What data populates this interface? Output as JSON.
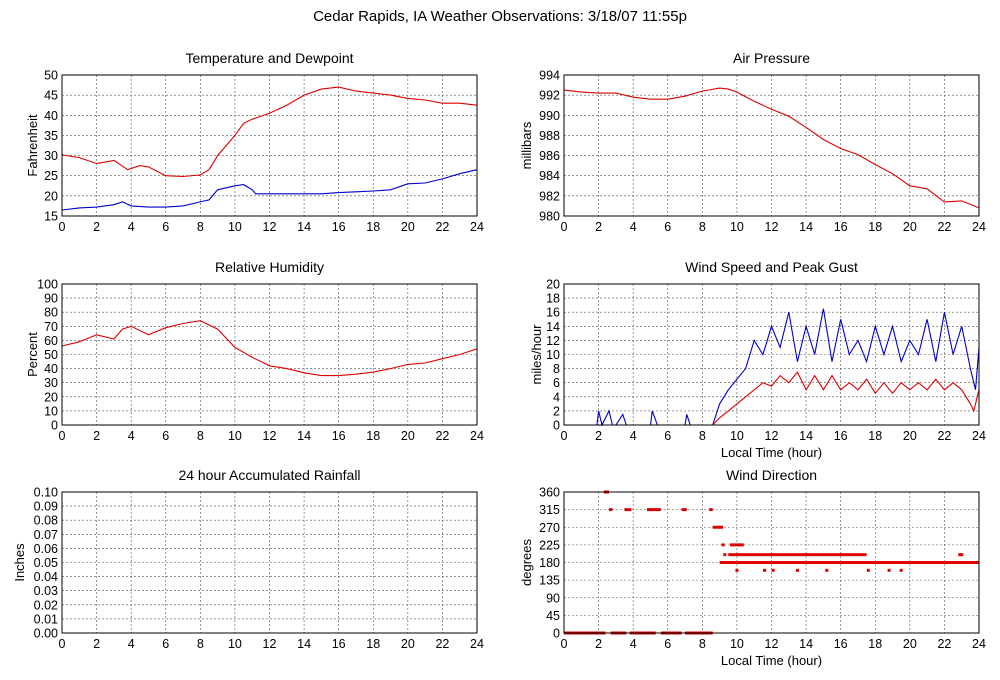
{
  "page_title": "Cedar Rapids, IA Weather Observations: 3/18/07 11:55p",
  "colors": {
    "red": "#dd0000",
    "blue": "#0000cc",
    "grid": "#555555"
  },
  "chart_data": [
    {
      "id": "temp",
      "type": "line",
      "title": "Temperature and Dewpoint",
      "xlabel": "",
      "ylabel": "Fahrenheit",
      "xlim": [
        0,
        24
      ],
      "ylim": [
        15,
        50
      ],
      "xticks": [
        0,
        2,
        4,
        6,
        8,
        10,
        12,
        14,
        16,
        18,
        20,
        22,
        24
      ],
      "yticks": [
        15,
        20,
        25,
        30,
        35,
        40,
        45,
        50
      ],
      "grid": true,
      "series": [
        {
          "color": "#dd0000",
          "points": [
            [
              0,
              30.2
            ],
            [
              1,
              29.5
            ],
            [
              2,
              28
            ],
            [
              3,
              28.8
            ],
            [
              3.8,
              26.5
            ],
            [
              4.5,
              27.5
            ],
            [
              5,
              27.2
            ],
            [
              6,
              25
            ],
            [
              7,
              24.8
            ],
            [
              8,
              25.2
            ],
            [
              8.5,
              26.5
            ],
            [
              9,
              30
            ],
            [
              10,
              35
            ],
            [
              10.5,
              38
            ],
            [
              11,
              39
            ],
            [
              12,
              40.5
            ],
            [
              13,
              42.5
            ],
            [
              14,
              45
            ],
            [
              15,
              46.5
            ],
            [
              16,
              47
            ],
            [
              17,
              46
            ],
            [
              18,
              45.5
            ],
            [
              19,
              45
            ],
            [
              20,
              44.2
            ],
            [
              21,
              43.8
            ],
            [
              22,
              43
            ],
            [
              23,
              43
            ],
            [
              24,
              42.5
            ]
          ]
        },
        {
          "color": "#0000cc",
          "points": [
            [
              0,
              16.5
            ],
            [
              1,
              17
            ],
            [
              2,
              17.2
            ],
            [
              3,
              17.8
            ],
            [
              3.5,
              18.5
            ],
            [
              4,
              17.5
            ],
            [
              5,
              17.2
            ],
            [
              6,
              17.2
            ],
            [
              7,
              17.5
            ],
            [
              8,
              18.5
            ],
            [
              8.5,
              19
            ],
            [
              9,
              21.5
            ],
            [
              10,
              22.5
            ],
            [
              10.5,
              22.8
            ],
            [
              11,
              21.5
            ],
            [
              11.2,
              20.5
            ],
            [
              12,
              20.5
            ],
            [
              13,
              20.5
            ],
            [
              14,
              20.5
            ],
            [
              15,
              20.5
            ],
            [
              16,
              20.8
            ],
            [
              17,
              21
            ],
            [
              18,
              21.2
            ],
            [
              19,
              21.5
            ],
            [
              20,
              23
            ],
            [
              21,
              23.2
            ],
            [
              22,
              24.2
            ],
            [
              23,
              25.5
            ],
            [
              24,
              26.5
            ]
          ]
        }
      ]
    },
    {
      "id": "pressure",
      "type": "line",
      "title": "Air Pressure",
      "xlabel": "",
      "ylabel": "millibars",
      "xlim": [
        0,
        24
      ],
      "ylim": [
        980,
        994
      ],
      "xticks": [
        0,
        2,
        4,
        6,
        8,
        10,
        12,
        14,
        16,
        18,
        20,
        22,
        24
      ],
      "yticks": [
        980,
        982,
        984,
        986,
        988,
        990,
        992,
        994
      ],
      "grid": true,
      "series": [
        {
          "color": "#dd0000",
          "points": [
            [
              0,
              992.5
            ],
            [
              1,
              992.3
            ],
            [
              2,
              992.2
            ],
            [
              3,
              992.2
            ],
            [
              4,
              991.8
            ],
            [
              5,
              991.6
            ],
            [
              6,
              991.6
            ],
            [
              7,
              991.9
            ],
            [
              8,
              992.4
            ],
            [
              9,
              992.7
            ],
            [
              9.5,
              992.6
            ],
            [
              10,
              992.3
            ],
            [
              11,
              991.4
            ],
            [
              12,
              990.6
            ],
            [
              13,
              989.9
            ],
            [
              14,
              988.8
            ],
            [
              15,
              987.6
            ],
            [
              16,
              986.7
            ],
            [
              17,
              986.1
            ],
            [
              18,
              985.1
            ],
            [
              19,
              984.2
            ],
            [
              20,
              983
            ],
            [
              21,
              982.7
            ],
            [
              22,
              981.4
            ],
            [
              23,
              981.5
            ],
            [
              24,
              980.8
            ]
          ]
        }
      ]
    },
    {
      "id": "humidity",
      "type": "line",
      "title": "Relative Humidity",
      "xlabel": "",
      "ylabel": "Percent",
      "xlim": [
        0,
        24
      ],
      "ylim": [
        0,
        100
      ],
      "xticks": [
        0,
        2,
        4,
        6,
        8,
        10,
        12,
        14,
        16,
        18,
        20,
        22,
        24
      ],
      "yticks": [
        0,
        10,
        20,
        30,
        40,
        50,
        60,
        70,
        80,
        90,
        100
      ],
      "grid": true,
      "series": [
        {
          "color": "#dd0000",
          "points": [
            [
              0,
              56
            ],
            [
              1,
              59
            ],
            [
              2,
              64
            ],
            [
              3,
              61
            ],
            [
              3.5,
              68
            ],
            [
              4,
              70
            ],
            [
              5,
              64
            ],
            [
              6,
              69
            ],
            [
              7,
              72
            ],
            [
              8,
              74
            ],
            [
              9,
              68
            ],
            [
              10,
              55
            ],
            [
              11,
              48
            ],
            [
              12,
              42
            ],
            [
              13,
              40
            ],
            [
              14,
              37
            ],
            [
              15,
              35
            ],
            [
              16,
              35
            ],
            [
              17,
              36
            ],
            [
              18,
              37.5
            ],
            [
              19,
              40
            ],
            [
              20,
              43
            ],
            [
              21,
              44
            ],
            [
              22,
              47
            ],
            [
              23,
              50
            ],
            [
              24,
              54
            ]
          ]
        }
      ]
    },
    {
      "id": "wind",
      "type": "line",
      "title": "Wind Speed and Peak Gust",
      "xlabel": "Local Time (hour)",
      "ylabel": "miles/hour",
      "xlim": [
        0,
        24
      ],
      "ylim": [
        0,
        20
      ],
      "xticks": [
        0,
        2,
        4,
        6,
        8,
        10,
        12,
        14,
        16,
        18,
        20,
        22,
        24
      ],
      "yticks": [
        0,
        2,
        4,
        6,
        8,
        10,
        12,
        14,
        16,
        18,
        20
      ],
      "grid": true,
      "series": [
        {
          "color": "#0000cc",
          "points": [
            [
              0,
              0
            ],
            [
              1.9,
              0
            ],
            [
              2,
              2
            ],
            [
              2.2,
              0
            ],
            [
              2.6,
              2
            ],
            [
              2.8,
              0
            ],
            [
              3,
              0
            ],
            [
              3.4,
              1.5
            ],
            [
              3.6,
              0
            ],
            [
              5,
              0
            ],
            [
              5.1,
              2
            ],
            [
              5.4,
              0
            ],
            [
              7,
              0
            ],
            [
              7.1,
              1.5
            ],
            [
              7.3,
              0
            ],
            [
              8.6,
              0
            ],
            [
              9,
              3
            ],
            [
              9.5,
              5
            ],
            [
              10,
              6.5
            ],
            [
              10.5,
              8
            ],
            [
              11,
              12
            ],
            [
              11.5,
              10
            ],
            [
              12,
              14
            ],
            [
              12.5,
              11
            ],
            [
              13,
              16
            ],
            [
              13.5,
              9
            ],
            [
              14,
              14
            ],
            [
              14.5,
              10
            ],
            [
              15,
              16.5
            ],
            [
              15.5,
              9
            ],
            [
              16,
              15
            ],
            [
              16.5,
              10
            ],
            [
              17,
              12
            ],
            [
              17.5,
              9
            ],
            [
              18,
              14
            ],
            [
              18.5,
              10
            ],
            [
              19,
              14
            ],
            [
              19.5,
              9
            ],
            [
              20,
              12
            ],
            [
              20.5,
              10
            ],
            [
              21,
              15
            ],
            [
              21.5,
              9
            ],
            [
              22,
              16
            ],
            [
              22.5,
              10
            ],
            [
              23,
              14
            ],
            [
              23.5,
              8
            ],
            [
              23.8,
              5
            ],
            [
              24,
              11
            ]
          ]
        },
        {
          "color": "#dd0000",
          "points": [
            [
              0,
              0
            ],
            [
              8.6,
              0
            ],
            [
              9,
              1
            ],
            [
              9.5,
              2
            ],
            [
              10,
              3
            ],
            [
              10.5,
              4
            ],
            [
              11,
              5
            ],
            [
              11.5,
              6
            ],
            [
              12,
              5.5
            ],
            [
              12.5,
              7
            ],
            [
              13,
              6
            ],
            [
              13.5,
              7.5
            ],
            [
              14,
              5
            ],
            [
              14.5,
              7
            ],
            [
              15,
              5
            ],
            [
              15.5,
              7
            ],
            [
              16,
              5
            ],
            [
              16.5,
              6
            ],
            [
              17,
              5
            ],
            [
              17.5,
              6.5
            ],
            [
              18,
              4.5
            ],
            [
              18.5,
              6
            ],
            [
              19,
              4.5
            ],
            [
              19.5,
              6
            ],
            [
              20,
              5
            ],
            [
              20.5,
              6
            ],
            [
              21,
              5
            ],
            [
              21.5,
              6.5
            ],
            [
              22,
              5
            ],
            [
              22.5,
              6
            ],
            [
              23,
              5
            ],
            [
              23.5,
              3
            ],
            [
              23.7,
              2
            ],
            [
              24,
              5
            ]
          ]
        }
      ]
    },
    {
      "id": "rain",
      "type": "line",
      "title": "24 hour Accumulated Rainfall",
      "xlabel": "",
      "ylabel": "Inches",
      "xlim": [
        0,
        24
      ],
      "ylim": [
        0,
        0.1
      ],
      "xticks": [
        0,
        2,
        4,
        6,
        8,
        10,
        12,
        14,
        16,
        18,
        20,
        22,
        24
      ],
      "yticks": [
        "0.00",
        "0.01",
        "0.02",
        "0.03",
        "0.04",
        "0.05",
        "0.06",
        "0.07",
        "0.08",
        "0.09",
        "0.10"
      ],
      "grid": true,
      "series": [
        {
          "color": "#dd0000",
          "points": [
            [
              0,
              0
            ],
            [
              24,
              0
            ]
          ]
        }
      ]
    },
    {
      "id": "direction",
      "type": "scatter",
      "title": "Wind Direction",
      "xlabel": "Local Time (hour)",
      "ylabel": "degrees",
      "xlim": [
        0,
        24
      ],
      "ylim": [
        0,
        360
      ],
      "xticks": [
        0,
        2,
        4,
        6,
        8,
        10,
        12,
        14,
        16,
        18,
        20,
        22,
        24
      ],
      "yticks": [
        0,
        45,
        90,
        135,
        180,
        225,
        270,
        315,
        360
      ],
      "grid": true,
      "series": [
        {
          "color": "#dd0000",
          "segments": [
            [
              0,
              2.4,
              0
            ],
            [
              2.7,
              3.6,
              0
            ],
            [
              3.8,
              5.3,
              0
            ],
            [
              5.6,
              6.8,
              0
            ],
            [
              7.0,
              8.6,
              0
            ],
            [
              2.3,
              2.6,
              360
            ],
            [
              2.6,
              2.8,
              315
            ],
            [
              3.5,
              3.9,
              315
            ],
            [
              4.8,
              5.6,
              315
            ],
            [
              6.8,
              7.1,
              315
            ],
            [
              8.4,
              8.6,
              315
            ],
            [
              8.6,
              9.2,
              270
            ],
            [
              9.6,
              10.4,
              225
            ],
            [
              9.0,
              24.0,
              180
            ],
            [
              9.5,
              17.5,
              200
            ],
            [
              22.8,
              23.0,
              200
            ]
          ],
          "points": [
            [
              9.2,
              225
            ],
            [
              9.3,
              200
            ],
            [
              10.0,
              160
            ],
            [
              10.6,
              180
            ],
            [
              11.6,
              160
            ],
            [
              12.1,
              160
            ],
            [
              13.5,
              160
            ],
            [
              15.2,
              160
            ],
            [
              17.6,
              160
            ],
            [
              18.8,
              160
            ],
            [
              19.5,
              160
            ],
            [
              23,
              200
            ]
          ]
        }
      ]
    }
  ]
}
